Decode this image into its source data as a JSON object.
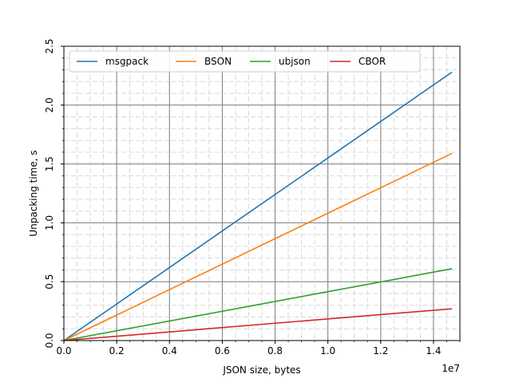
{
  "chart_data": {
    "type": "line",
    "title": "",
    "xlabel": "JSON size, bytes",
    "ylabel": "Unpacking time, s",
    "x_offset_label": "1e7",
    "xlim": [
      0,
      1.5
    ],
    "ylim": [
      0,
      2.5
    ],
    "x_ticks": [
      0.0,
      0.2,
      0.4,
      0.6,
      0.8,
      1.0,
      1.2,
      1.4
    ],
    "x_tick_labels": [
      "0.0",
      "0.2",
      "0.4",
      "0.6",
      "0.8",
      "1.0",
      "1.2",
      "1.4"
    ],
    "y_ticks": [
      0.0,
      0.5,
      1.0,
      1.5,
      2.0,
      2.5
    ],
    "y_tick_labels": [
      "0.0",
      "0.5",
      "1.0",
      "1.5",
      "2.0",
      "2.5"
    ],
    "grid": true,
    "minor_grid": true,
    "legend_position": "top, horizontal",
    "x": [
      0.0,
      1.47
    ],
    "series": [
      {
        "name": "msgpack",
        "color": "#1f77b4",
        "values": [
          0.0,
          2.28
        ]
      },
      {
        "name": "BSON",
        "color": "#ff7f0e",
        "values": [
          0.0,
          1.59
        ]
      },
      {
        "name": "ubjson",
        "color": "#2ca02c",
        "values": [
          0.0,
          0.61
        ]
      },
      {
        "name": "CBOR",
        "color": "#d62728",
        "values": [
          0.0,
          0.27
        ]
      }
    ]
  }
}
